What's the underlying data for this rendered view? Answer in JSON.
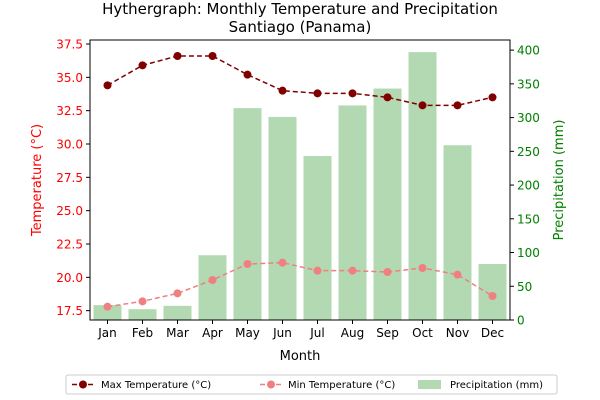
{
  "chart_data": {
    "type": "bar",
    "title": "Hythergraph: Monthly Temperature and Precipitation",
    "subtitle": "Santiago (Panama)",
    "xlabel": "Month",
    "ylabel_left": "Temperature (°C)",
    "ylabel_right": "Precipitation (mm)",
    "categories": [
      "Jan",
      "Feb",
      "Mar",
      "Apr",
      "May",
      "Jun",
      "Jul",
      "Aug",
      "Sep",
      "Oct",
      "Nov",
      "Dec"
    ],
    "ylim_left": [
      16.8,
      37.8
    ],
    "ylim_right": [
      0,
      415
    ],
    "yticks_left": [
      "17.5",
      "20.0",
      "22.5",
      "25.0",
      "27.5",
      "30.0",
      "32.5",
      "35.0",
      "37.5"
    ],
    "yticks_right": [
      "0",
      "50",
      "100",
      "150",
      "200",
      "250",
      "300",
      "350",
      "400"
    ],
    "legend_position": "bottom-center",
    "series": [
      {
        "name": "Max Temperature (°C)",
        "kind": "line",
        "axis": "left",
        "color": "#800000",
        "values": [
          34.4,
          35.9,
          36.6,
          36.6,
          35.2,
          34.0,
          33.8,
          33.8,
          33.5,
          32.9,
          32.9,
          33.5
        ]
      },
      {
        "name": "Min Temperature (°C)",
        "kind": "line",
        "axis": "left",
        "color": "#f08080",
        "values": [
          17.8,
          18.2,
          18.8,
          19.8,
          21.0,
          21.1,
          20.5,
          20.5,
          20.4,
          20.7,
          20.2,
          18.6
        ]
      },
      {
        "name": "Precipitation (mm)",
        "kind": "bar",
        "axis": "right",
        "color": "#b2d9b2",
        "values": [
          22,
          16,
          21,
          96,
          314,
          301,
          243,
          318,
          343,
          397,
          259,
          83
        ]
      }
    ],
    "left_axis_color": "#ff0000",
    "right_axis_color": "#008000"
  }
}
